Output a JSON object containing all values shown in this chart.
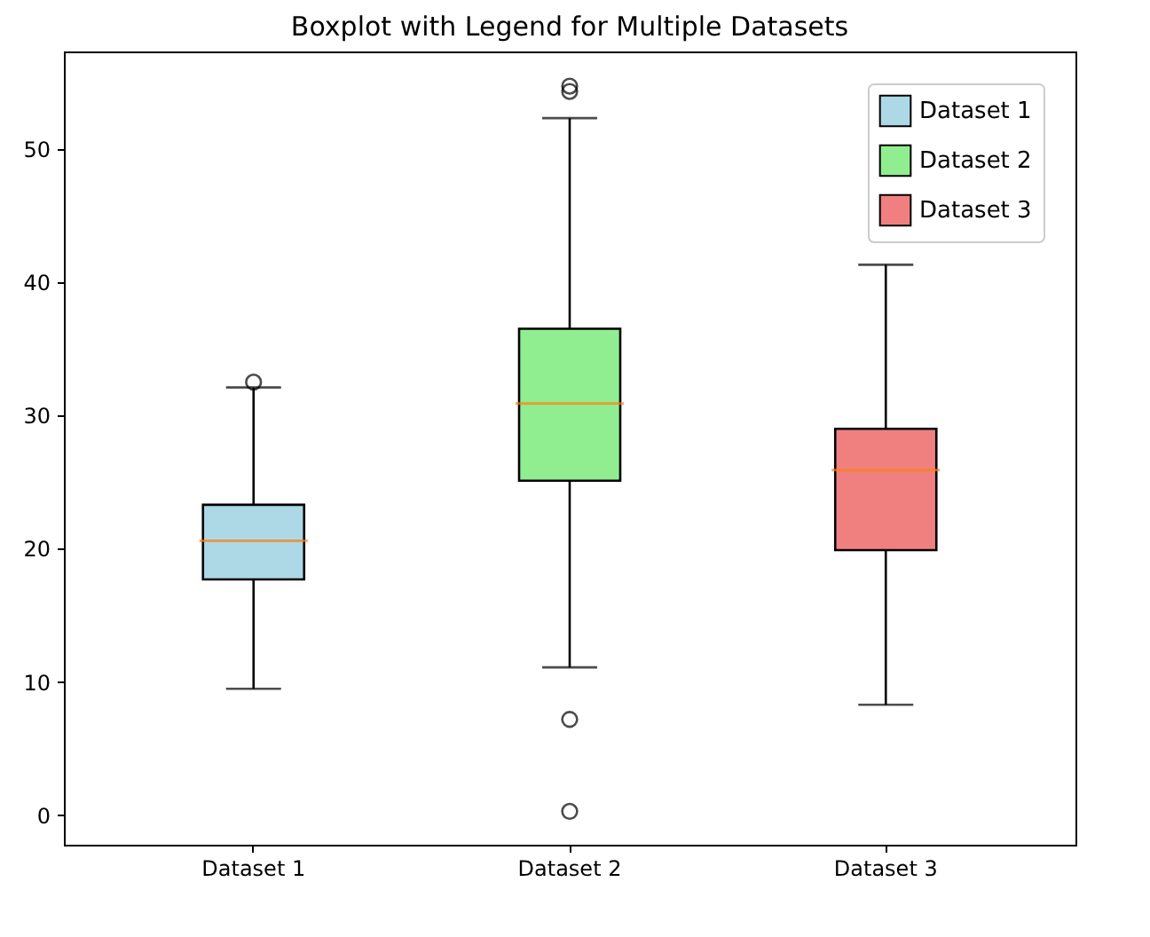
{
  "chart_data": {
    "type": "box",
    "title": "Boxplot with Legend for Multiple Datasets",
    "categories": [
      "Dataset 1",
      "Dataset 2",
      "Dataset 3"
    ],
    "series": [
      {
        "name": "Dataset 1",
        "color": "#add8e6",
        "boxes": [
          {
            "low": 9.5,
            "q1": 17.7,
            "median": 20.6,
            "q3": 23.3,
            "high": 32.1,
            "outliers": [
              32.5
            ]
          },
          null,
          null
        ]
      },
      {
        "name": "Dataset 2",
        "color": "#90ee90",
        "boxes": [
          null,
          {
            "low": 11.1,
            "q1": 25.1,
            "median": 30.9,
            "q3": 36.5,
            "high": 52.3,
            "outliers": [
              54.7,
              54.3,
              7.2,
              0.3
            ]
          },
          null
        ]
      },
      {
        "name": "Dataset 3",
        "color": "#f08080",
        "boxes": [
          null,
          null,
          {
            "low": 8.3,
            "q1": 19.9,
            "median": 25.9,
            "q3": 29.0,
            "high": 41.3
          }
        ]
      }
    ],
    "ylim": [
      -2.2,
      57.3
    ],
    "yticks": [
      0,
      10,
      20,
      30,
      40,
      50
    ],
    "legend": "top right",
    "grid": false
  }
}
